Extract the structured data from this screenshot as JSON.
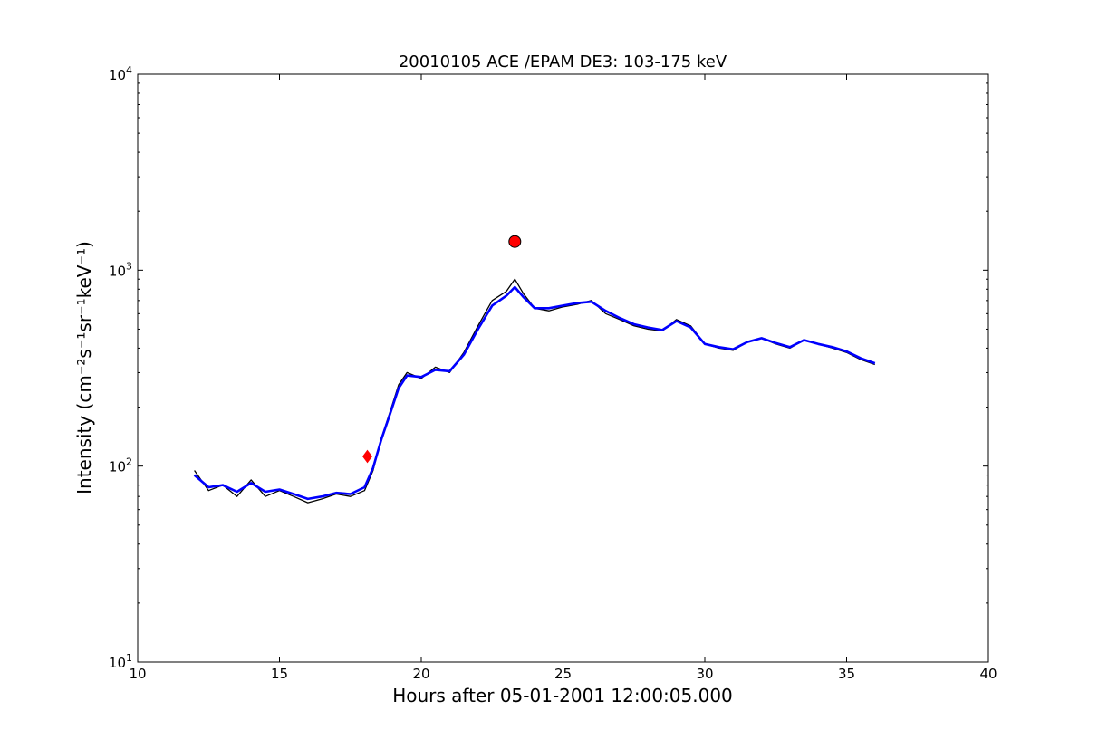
{
  "chart_data": {
    "type": "line",
    "title": "20010105 ACE /EPAM DE3: 103-175 keV",
    "xlabel": "Hours after 05-01-2001 12:00:05.000",
    "ylabel": "Intensity (cm⁻²s⁻¹sr⁻¹keV⁻¹)",
    "xlim": [
      10,
      40
    ],
    "ylim": [
      10,
      10000
    ],
    "yscale": "log",
    "grid": false,
    "xticks": [
      "10",
      "15",
      "20",
      "25",
      "30",
      "35",
      "40"
    ],
    "yticks": [
      {
        "base": "10",
        "exp": "1"
      },
      {
        "base": "10",
        "exp": "2"
      },
      {
        "base": "10",
        "exp": "3"
      },
      {
        "base": "10",
        "exp": "4"
      }
    ],
    "series": [
      {
        "color": "#000000",
        "x": [
          12.0,
          12.5,
          13.0,
          13.5,
          14.0,
          14.5,
          15.0,
          15.5,
          16.0,
          16.5,
          17.0,
          17.5,
          18.0,
          18.3,
          18.6,
          18.9,
          19.2,
          19.5,
          20.0,
          20.5,
          21.0,
          21.5,
          22.0,
          22.5,
          23.0,
          23.3,
          23.6,
          24.0,
          24.5,
          25.0,
          25.5,
          26.0,
          26.5,
          27.0,
          27.5,
          28.0,
          28.5,
          29.0,
          29.5,
          30.0,
          30.5,
          31.0,
          31.5,
          32.0,
          32.5,
          33.0,
          33.5,
          34.0,
          34.5,
          35.0,
          35.5,
          36.0
        ],
        "y": [
          95,
          75,
          80,
          70,
          85,
          70,
          75,
          70,
          65,
          68,
          72,
          70,
          75,
          95,
          140,
          190,
          260,
          300,
          280,
          320,
          300,
          380,
          520,
          700,
          780,
          900,
          760,
          640,
          620,
          650,
          670,
          700,
          600,
          560,
          520,
          500,
          490,
          560,
          520,
          420,
          400,
          390,
          430,
          450,
          420,
          400,
          440,
          420,
          400,
          380,
          350,
          330
        ]
      },
      {
        "color": "#0000ff",
        "x": [
          12.0,
          12.5,
          13.0,
          13.5,
          14.0,
          14.5,
          15.0,
          15.5,
          16.0,
          16.5,
          17.0,
          17.5,
          18.0,
          18.3,
          18.6,
          18.9,
          19.2,
          19.5,
          20.0,
          20.5,
          21.0,
          21.5,
          22.0,
          22.5,
          23.0,
          23.3,
          23.6,
          24.0,
          24.5,
          25.0,
          25.5,
          26.0,
          26.5,
          27.0,
          27.5,
          28.0,
          28.5,
          29.0,
          29.5,
          30.0,
          30.5,
          31.0,
          31.5,
          32.0,
          32.5,
          33.0,
          33.5,
          34.0,
          34.5,
          35.0,
          35.5,
          36.0
        ],
        "y": [
          90,
          78,
          80,
          74,
          82,
          74,
          76,
          72,
          68,
          70,
          73,
          72,
          78,
          98,
          138,
          185,
          250,
          290,
          285,
          310,
          305,
          370,
          500,
          660,
          740,
          820,
          730,
          640,
          640,
          660,
          680,
          690,
          620,
          570,
          530,
          510,
          495,
          550,
          510,
          420,
          405,
          395,
          430,
          450,
          425,
          405,
          440,
          420,
          405,
          385,
          355,
          335
        ]
      }
    ],
    "markers": [
      {
        "type": "circle",
        "x": 23.3,
        "y": 1400,
        "color": "#ff0000"
      },
      {
        "type": "diamond",
        "x": 18.1,
        "y": 112,
        "color": "#ff0000"
      }
    ]
  }
}
